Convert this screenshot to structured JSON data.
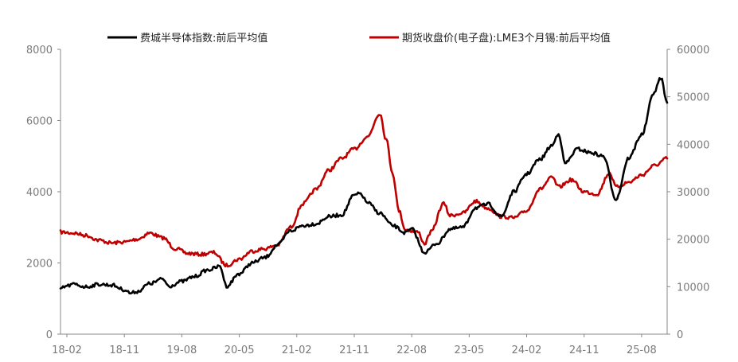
{
  "chart_data": {
    "type": "line",
    "title": "",
    "xlabel": "",
    "ylabel": "",
    "grid": false,
    "legend_position": "top",
    "x_ticks": [
      "18-02",
      "18-11",
      "19-08",
      "20-05",
      "21-02",
      "21-11",
      "22-08",
      "23-05",
      "24-02",
      "24-11",
      "25-08"
    ],
    "y_left": {
      "lim": [
        0,
        8000
      ],
      "ticks": [
        "0",
        "2000",
        "4000",
        "6000",
        "8000"
      ]
    },
    "y_right": {
      "lim": [
        0,
        60000
      ],
      "ticks": [
        "0",
        "10000",
        "20000",
        "30000",
        "40000",
        "50000",
        "60000"
      ]
    },
    "series": [
      {
        "name": "费城半导体指数:前后平均值",
        "axis": "left",
        "color": "#000000",
        "points": [
          [
            "2018-01",
            1280
          ],
          [
            "2018-02",
            1350
          ],
          [
            "2018-03",
            1400
          ],
          [
            "2018-05",
            1330
          ],
          [
            "2018-07",
            1400
          ],
          [
            "2018-09",
            1380
          ],
          [
            "2018-11",
            1250
          ],
          [
            "2018-12",
            1150
          ],
          [
            "2019-01",
            1200
          ],
          [
            "2019-03",
            1420
          ],
          [
            "2019-05",
            1550
          ],
          [
            "2019-06",
            1350
          ],
          [
            "2019-08",
            1480
          ],
          [
            "2019-10",
            1620
          ],
          [
            "2019-12",
            1800
          ],
          [
            "2020-02",
            1900
          ],
          [
            "2020-03",
            1350
          ],
          [
            "2020-05",
            1700
          ],
          [
            "2020-07",
            2000
          ],
          [
            "2020-09",
            2150
          ],
          [
            "2020-11",
            2500
          ],
          [
            "2021-01",
            2900
          ],
          [
            "2021-03",
            3050
          ],
          [
            "2021-05",
            3100
          ],
          [
            "2021-07",
            3300
          ],
          [
            "2021-09",
            3350
          ],
          [
            "2021-11",
            3900
          ],
          [
            "2021-12",
            3950
          ],
          [
            "2022-01",
            3700
          ],
          [
            "2022-03",
            3400
          ],
          [
            "2022-05",
            3050
          ],
          [
            "2022-07",
            2850
          ],
          [
            "2022-08",
            2950
          ],
          [
            "2022-10",
            2300
          ],
          [
            "2022-12",
            2550
          ],
          [
            "2023-02",
            2950
          ],
          [
            "2023-04",
            3000
          ],
          [
            "2023-06",
            3550
          ],
          [
            "2023-08",
            3650
          ],
          [
            "2023-10",
            3300
          ],
          [
            "2023-12",
            4000
          ],
          [
            "2024-02",
            4500
          ],
          [
            "2024-04",
            4900
          ],
          [
            "2024-06",
            5300
          ],
          [
            "2024-07",
            5650
          ],
          [
            "2024-08",
            4800
          ],
          [
            "2024-10",
            5200
          ],
          [
            "2024-12",
            5100
          ],
          [
            "2025-02",
            5000
          ],
          [
            "2025-04",
            3800
          ],
          [
            "2025-06",
            4950
          ],
          [
            "2025-08",
            5600
          ],
          [
            "2025-10",
            6800
          ],
          [
            "2025-11",
            7200
          ],
          [
            "2025-12",
            6500
          ]
        ]
      },
      {
        "name": "期货收盘价(电子盘):LME3个月锡:前后平均值",
        "axis": "right",
        "color": "#c00000",
        "points": [
          [
            "2018-01",
            21500
          ],
          [
            "2018-03",
            21300
          ],
          [
            "2018-05",
            20800
          ],
          [
            "2018-07",
            19800
          ],
          [
            "2018-09",
            19200
          ],
          [
            "2018-11",
            19400
          ],
          [
            "2019-01",
            20000
          ],
          [
            "2019-03",
            21300
          ],
          [
            "2019-05",
            20300
          ],
          [
            "2019-07",
            18000
          ],
          [
            "2019-09",
            17000
          ],
          [
            "2019-11",
            16800
          ],
          [
            "2020-01",
            17200
          ],
          [
            "2020-03",
            14500
          ],
          [
            "2020-05",
            15800
          ],
          [
            "2020-07",
            17500
          ],
          [
            "2020-09",
            18000
          ],
          [
            "2020-11",
            18800
          ],
          [
            "2021-01",
            22500
          ],
          [
            "2021-03",
            27500
          ],
          [
            "2021-05",
            30500
          ],
          [
            "2021-07",
            34500
          ],
          [
            "2021-09",
            37000
          ],
          [
            "2021-11",
            39000
          ],
          [
            "2022-01",
            41500
          ],
          [
            "2022-03",
            46500
          ],
          [
            "2022-04",
            41000
          ],
          [
            "2022-05",
            34000
          ],
          [
            "2022-06",
            26000
          ],
          [
            "2022-07",
            22000
          ],
          [
            "2022-09",
            21500
          ],
          [
            "2022-10",
            19000
          ],
          [
            "2022-11",
            21500
          ],
          [
            "2023-01",
            27500
          ],
          [
            "2023-02",
            25000
          ],
          [
            "2023-04",
            25500
          ],
          [
            "2023-06",
            28000
          ],
          [
            "2023-08",
            26500
          ],
          [
            "2023-10",
            24800
          ],
          [
            "2023-12",
            24500
          ],
          [
            "2024-02",
            26000
          ],
          [
            "2024-04",
            30500
          ],
          [
            "2024-06",
            33000
          ],
          [
            "2024-07",
            31000
          ],
          [
            "2024-09",
            32500
          ],
          [
            "2024-11",
            30000
          ],
          [
            "2025-01",
            29500
          ],
          [
            "2025-03",
            34000
          ],
          [
            "2025-04",
            31000
          ],
          [
            "2025-06",
            32000
          ],
          [
            "2025-08",
            33500
          ],
          [
            "2025-10",
            35500
          ],
          [
            "2025-12",
            37000
          ]
        ]
      }
    ]
  }
}
